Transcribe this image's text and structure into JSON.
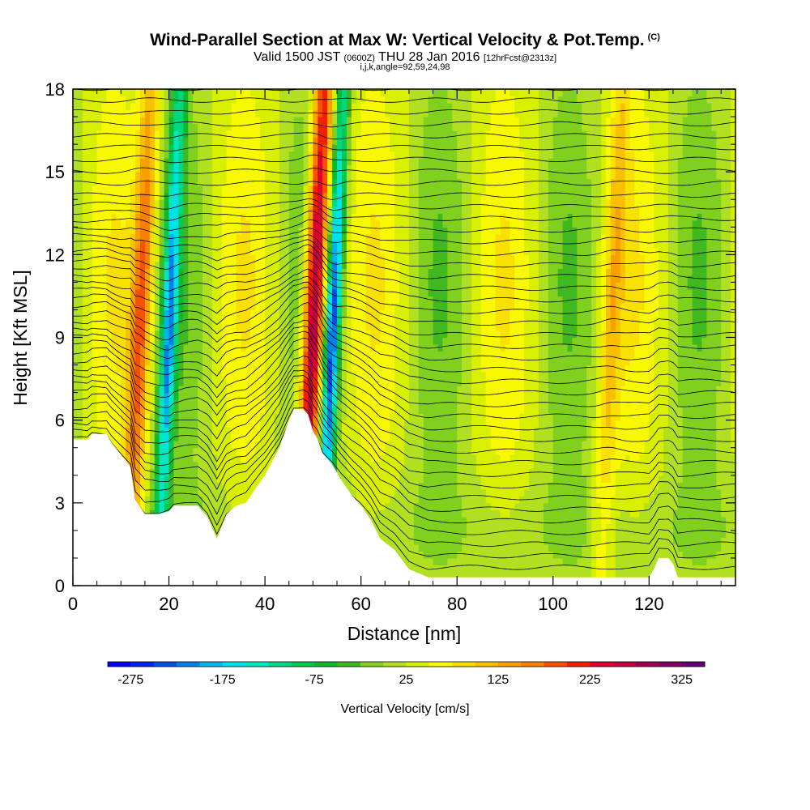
{
  "header": {
    "title": "Wind-Parallel Section at Max W: Vertical Velocity & Pot.Temp.",
    "title_mark": "(C)",
    "valid_prefix": "Valid 1500 JST",
    "valid_utc": "(0600Z)",
    "valid_date": "THU 28 Jan 2016",
    "forecast_info": "[12hrFcst@2313z]",
    "indices": "i,j,k,angle=92,59,24,98"
  },
  "chart_data": {
    "type": "heatmap",
    "xlabel": "Distance [nm]",
    "ylabel": "Height [Kft MSL]",
    "xlim": [
      0,
      138
    ],
    "ylim": [
      0,
      18
    ],
    "x_ticks": [
      0,
      20,
      40,
      60,
      80,
      100,
      120
    ],
    "y_ticks": [
      0,
      3,
      6,
      9,
      12,
      15,
      18
    ],
    "grid": false,
    "colorbar": {
      "title": "Vertical Velocity [cm/s]",
      "min": -300,
      "max": 350,
      "interval": 25,
      "tick_labels": [
        "-275",
        "-175",
        "-75",
        "25",
        "125",
        "225",
        "325"
      ],
      "tick_values": [
        -275,
        -175,
        -75,
        25,
        125,
        225,
        325
      ],
      "colors": [
        "#0000ff",
        "#0020f0",
        "#0050e8",
        "#0080e8",
        "#00b4f0",
        "#00e0e8",
        "#00e8c0",
        "#00d880",
        "#00c850",
        "#10b830",
        "#40b820",
        "#80d020",
        "#b0e020",
        "#d8f000",
        "#f8f800",
        "#f8e000",
        "#f8c000",
        "#f8a000",
        "#f88000",
        "#f85000",
        "#f02000",
        "#e00030",
        "#c00040",
        "#a00050",
        "#800060",
        "#600070"
      ]
    },
    "updraft_cores": [
      {
        "x": 14,
        "peak_cm_s": 175
      },
      {
        "x": 50,
        "peak_cm_s": 325
      },
      {
        "x": 112,
        "peak_cm_s": 100
      }
    ],
    "downdraft_cores": [
      {
        "x": 20,
        "peak_cm_s": -175
      },
      {
        "x": 54,
        "peak_cm_s": -225
      }
    ],
    "terrain_profile": {
      "x": [
        0,
        3,
        4,
        7,
        8,
        12,
        13,
        15,
        18,
        20,
        21,
        23,
        26,
        28,
        30,
        32,
        34,
        36,
        38,
        40,
        43,
        45,
        46,
        48,
        49,
        50,
        51,
        52,
        54,
        56,
        58,
        60,
        62,
        64,
        67,
        70,
        74,
        80,
        90,
        100,
        110,
        120,
        121,
        122,
        124,
        125,
        126,
        130,
        138
      ],
      "height_kft": [
        5.3,
        5.3,
        5.5,
        5.5,
        5.2,
        4.3,
        3.1,
        2.6,
        2.6,
        2.7,
        2.9,
        2.9,
        2.9,
        2.5,
        1.7,
        2.6,
        2.9,
        3.0,
        3.5,
        4.0,
        5.0,
        6.0,
        6.4,
        6.4,
        6.2,
        5.6,
        5.3,
        4.8,
        4.4,
        3.8,
        3.3,
        2.9,
        2.4,
        1.7,
        1.3,
        0.6,
        0.3,
        0.3,
        0.3,
        0.3,
        0.3,
        0.3,
        0.6,
        1.0,
        1.0,
        0.8,
        0.3,
        0.3,
        0.3
      ]
    }
  }
}
